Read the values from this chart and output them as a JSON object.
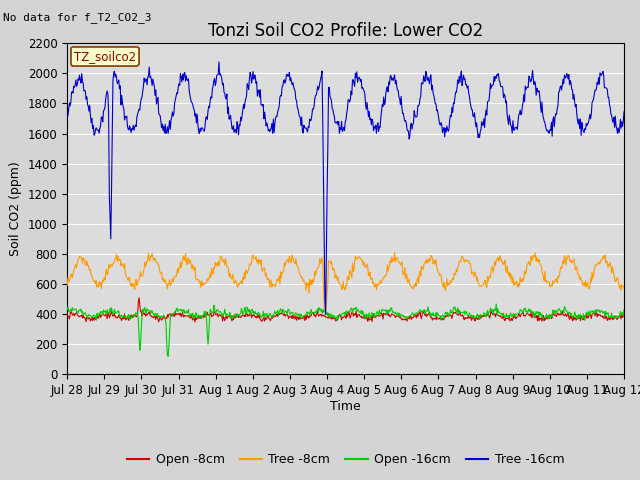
{
  "title": "Tonzi Soil CO2 Profile: Lower CO2",
  "no_data_text": "No data for f_T2_CO2_3",
  "ylabel": "Soil CO2 (ppm)",
  "xlabel": "Time",
  "ylim": [
    0,
    2200
  ],
  "yticks": [
    0,
    200,
    400,
    600,
    800,
    1000,
    1200,
    1400,
    1600,
    1800,
    2000,
    2200
  ],
  "xtick_labels": [
    "Jul 28",
    "Jul 29",
    "Jul 30",
    "Jul 31",
    "Aug 1",
    "Aug 2",
    "Aug 3",
    "Aug 4",
    "Aug 5",
    "Aug 6",
    "Aug 7",
    "Aug 8",
    "Aug 9",
    "Aug 10",
    "Aug 11",
    "Aug 12"
  ],
  "legend_label": "TZ_soilco2",
  "legend_entries": [
    "Open -8cm",
    "Tree -8cm",
    "Open -16cm",
    "Tree -16cm"
  ],
  "line_colors": [
    "#cc0000",
    "#ff9900",
    "#00cc00",
    "#0000cc"
  ],
  "fig_bg_color": "#d4d4d4",
  "plot_bg_color": "#dcdcdc",
  "grid_color": "#ffffff",
  "title_fontsize": 12,
  "axis_fontsize": 9,
  "tick_fontsize": 8.5,
  "n_days": 16,
  "pts_per_day": 48,
  "seed": 42
}
